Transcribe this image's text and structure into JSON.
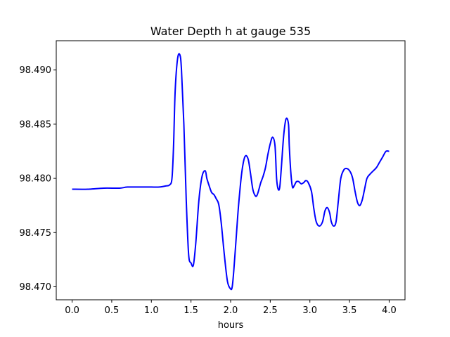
{
  "chart_data": {
    "type": "line",
    "title": "Water Depth h at gauge 535",
    "xlabel": "hours",
    "ylabel": "",
    "xlim": [
      -0.2,
      4.2
    ],
    "ylim": [
      98.4688,
      98.4927
    ],
    "xticks": [
      0.0,
      0.5,
      1.0,
      1.5,
      2.0,
      2.5,
      3.0,
      3.5,
      4.0
    ],
    "xtick_labels": [
      "0.0",
      "0.5",
      "1.0",
      "1.5",
      "2.0",
      "2.5",
      "3.0",
      "3.5",
      "4.0"
    ],
    "yticks": [
      98.47,
      98.475,
      98.48,
      98.485,
      98.49
    ],
    "ytick_labels": [
      "98.470",
      "98.475",
      "98.480",
      "98.485",
      "98.490"
    ],
    "grid": false,
    "series": [
      {
        "color": "#0000ff",
        "x": [
          0.0,
          0.2,
          0.4,
          0.6,
          0.7,
          0.9,
          1.0,
          1.1,
          1.18,
          1.23,
          1.26,
          1.28,
          1.3,
          1.33,
          1.36,
          1.38,
          1.41,
          1.44,
          1.47,
          1.5,
          1.53,
          1.56,
          1.6,
          1.64,
          1.68,
          1.7,
          1.73,
          1.76,
          1.79,
          1.82,
          1.85,
          1.88,
          1.92,
          1.96,
          2.0,
          2.02,
          2.04,
          2.07,
          2.1,
          2.14,
          2.18,
          2.22,
          2.25,
          2.28,
          2.31,
          2.33,
          2.35,
          2.38,
          2.41,
          2.44,
          2.47,
          2.5,
          2.53,
          2.56,
          2.58,
          2.6,
          2.62,
          2.64,
          2.67,
          2.7,
          2.73,
          2.74,
          2.76,
          2.78,
          2.8,
          2.83,
          2.86,
          2.89,
          2.92,
          2.95,
          2.98,
          3.02,
          3.05,
          3.08,
          3.12,
          3.16,
          3.19,
          3.22,
          3.25,
          3.27,
          3.3,
          3.33,
          3.36,
          3.39,
          3.43,
          3.47,
          3.51,
          3.54,
          3.57,
          3.6,
          3.63,
          3.66,
          3.69,
          3.72,
          3.76,
          3.8,
          3.84,
          3.88,
          3.92,
          3.96,
          4.0
        ],
        "y": [
          98.479,
          98.479,
          98.4791,
          98.4791,
          98.4792,
          98.4792,
          98.4792,
          98.4792,
          98.4793,
          98.4794,
          98.48,
          98.483,
          98.488,
          98.491,
          98.4914,
          98.49,
          98.485,
          98.478,
          98.473,
          98.4722,
          98.472,
          98.474,
          98.478,
          98.4802,
          98.4807,
          98.48,
          98.4793,
          98.4787,
          98.4785,
          98.4781,
          98.4776,
          98.476,
          98.473,
          98.4705,
          98.4698,
          98.47,
          98.4715,
          98.4745,
          98.4775,
          98.4805,
          98.482,
          98.4818,
          98.4805,
          98.479,
          98.4784,
          98.4784,
          98.4788,
          98.4796,
          98.4802,
          98.481,
          98.4822,
          98.4832,
          98.4838,
          98.483,
          98.48,
          98.479,
          98.4792,
          98.481,
          98.484,
          98.4855,
          98.485,
          98.483,
          98.4805,
          98.4792,
          98.4793,
          98.4797,
          98.4797,
          98.4795,
          98.4796,
          98.4798,
          98.4796,
          98.4788,
          98.4772,
          98.476,
          98.4756,
          98.476,
          98.477,
          98.4773,
          98.4768,
          98.476,
          98.4756,
          98.476,
          98.478,
          98.48,
          98.4808,
          98.4809,
          98.4806,
          98.48,
          98.4788,
          98.4778,
          98.4775,
          98.478,
          98.479,
          98.48,
          98.4804,
          98.4807,
          98.481,
          98.4815,
          98.482,
          98.4825,
          98.4825
        ]
      }
    ]
  }
}
